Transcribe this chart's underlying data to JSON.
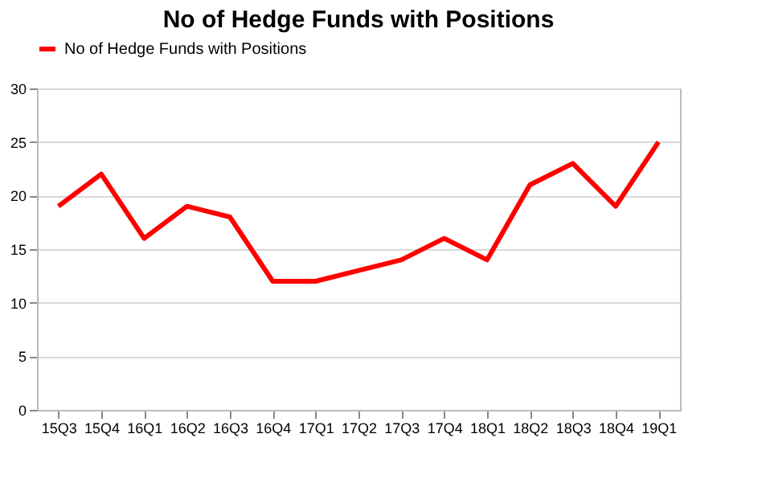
{
  "chart_data": {
    "type": "line",
    "title": "No of Hedge Funds with Positions",
    "categories": [
      "15Q3",
      "15Q4",
      "16Q1",
      "16Q2",
      "16Q3",
      "16Q4",
      "17Q1",
      "17Q2",
      "17Q3",
      "17Q4",
      "18Q1",
      "18Q2",
      "18Q3",
      "18Q4",
      "19Q1"
    ],
    "series": [
      {
        "name": "No of Hedge Funds with Positions",
        "color": "#ff0000",
        "values": [
          19,
          22,
          16,
          19,
          18,
          12,
          12,
          13,
          14,
          16,
          14,
          21,
          23,
          19,
          25
        ]
      }
    ],
    "ylim": [
      0,
      30
    ],
    "yticks": [
      0,
      5,
      10,
      15,
      20,
      25,
      30
    ],
    "grid": "y",
    "legend": "top",
    "marker": "none",
    "line_style": "solid"
  }
}
